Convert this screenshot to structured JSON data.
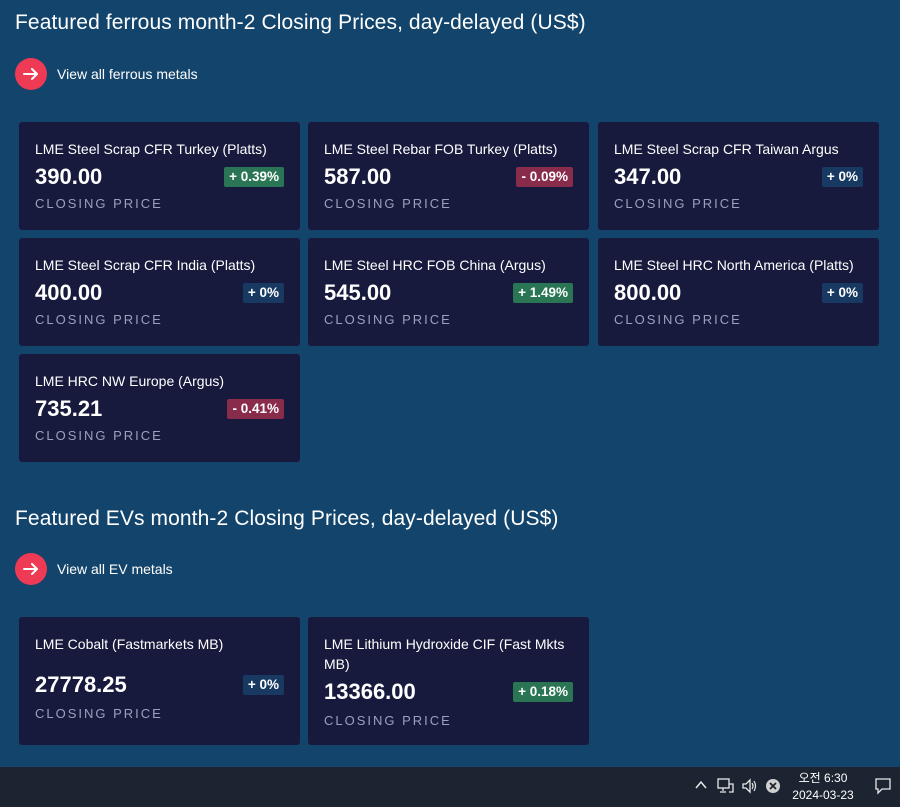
{
  "ferrous": {
    "title": "Featured ferrous month-2 Closing Prices, day-delayed (US$)",
    "link_label": "View all ferrous metals",
    "cards": [
      {
        "name": "LME Steel Scrap CFR Turkey (Platts)",
        "price": "390.00",
        "change": "+ 0.39%",
        "direction": "up",
        "caption": "CLOSING PRICE"
      },
      {
        "name": "LME Steel Rebar FOB Turkey (Platts)",
        "price": "587.00",
        "change": "- 0.09%",
        "direction": "down",
        "caption": "CLOSING PRICE"
      },
      {
        "name": "LME Steel Scrap CFR Taiwan Argus",
        "price": "347.00",
        "change": "+ 0%",
        "direction": "flat",
        "caption": "CLOSING PRICE"
      },
      {
        "name": "LME Steel Scrap CFR India (Platts)",
        "price": "400.00",
        "change": "+ 0%",
        "direction": "flat",
        "caption": "CLOSING PRICE"
      },
      {
        "name": "LME Steel HRC FOB China (Argus)",
        "price": "545.00",
        "change": "+ 1.49%",
        "direction": "up",
        "caption": "CLOSING PRICE"
      },
      {
        "name": "LME Steel HRC North America (Platts)",
        "price": "800.00",
        "change": "+ 0%",
        "direction": "flat",
        "caption": "CLOSING PRICE"
      },
      {
        "name": "LME HRC NW Europe (Argus)",
        "price": "735.21",
        "change": "- 0.41%",
        "direction": "down",
        "caption": "CLOSING PRICE"
      }
    ]
  },
  "evs": {
    "title": "Featured EVs month-2 Closing Prices, day-delayed (US$)",
    "link_label": "View all EV metals",
    "cards": [
      {
        "name": "LME Cobalt (Fastmarkets MB)",
        "price": "27778.25",
        "change": "+ 0%",
        "direction": "flat",
        "caption": "CLOSING PRICE"
      },
      {
        "name": "LME Lithium Hydroxide CIF (Fast Mkts MB)",
        "price": "13366.00",
        "change": "+ 0.18%",
        "direction": "up",
        "caption": "CLOSING PRICE"
      }
    ]
  },
  "colors": {
    "background": "#13446b",
    "card": "#171a3d",
    "accent": "#ef3a55",
    "badge_up": "#2a7654",
    "badge_down": "#892b4a",
    "badge_flat": "#183a62",
    "taskbar": "#1b2430"
  },
  "taskbar": {
    "time": "오전 6:30",
    "date": "2024-03-23",
    "icons": [
      "chevron-up-icon",
      "network-icon",
      "volume-icon",
      "close-circle-icon",
      "notification-icon"
    ]
  }
}
